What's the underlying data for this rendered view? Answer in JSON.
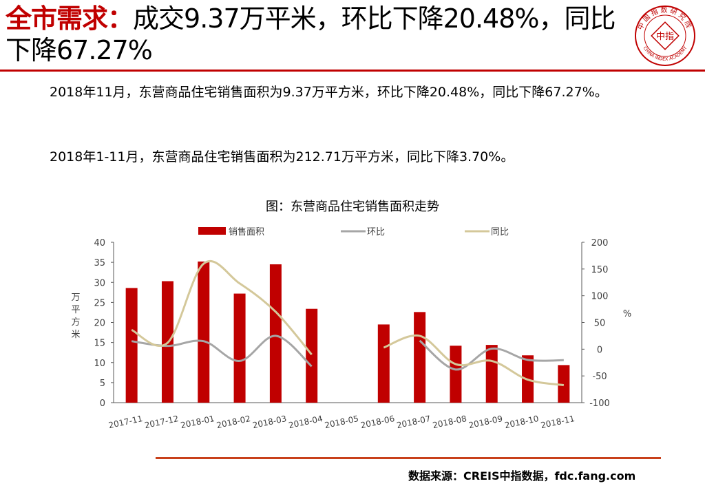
{
  "header": {
    "title_highlight": "全市需求：",
    "title_rest": "成交9.37万平米，环比下降20.48%，同比下降67.27%"
  },
  "logo": {
    "top_text": "中国指数研究院",
    "center_text": "中指",
    "bottom_text": "CHINA INDEX ACADEMY",
    "color": "#c00000"
  },
  "body": {
    "para1": "2018年11月，东营商品住宅销售面积为9.37万平方米，环比下降20.48%，同比下降67.27%。",
    "para2": "2018年1-11月，东营商品住宅销售面积为212.71万平方米，同比下降3.70%。"
  },
  "chart_title": "图：东营商品住宅销售面积走势",
  "chart_data": {
    "type": "bar",
    "categories": [
      "2017-11",
      "2017-12",
      "2018-01",
      "2018-02",
      "2018-03",
      "2018-04",
      "2018-05",
      "2018-06",
      "2018-07",
      "2018-08",
      "2018-09",
      "2018-10",
      "2018-11"
    ],
    "series": [
      {
        "name": "销售面积",
        "kind": "bar",
        "axis": "left",
        "color": "#c00000",
        "values": [
          28.6,
          30.3,
          35.2,
          27.2,
          34.5,
          23.4,
          null,
          19.5,
          22.6,
          14.2,
          14.4,
          11.8,
          9.37
        ]
      },
      {
        "name": "环比",
        "kind": "line",
        "axis": "right",
        "color": "#a6a6a6",
        "values": [
          15,
          6,
          15,
          -22,
          25,
          -32,
          null,
          null,
          16,
          -38,
          1,
          -20,
          -20.48
        ]
      },
      {
        "name": "同比",
        "kind": "line",
        "axis": "right",
        "color": "#d4c89a",
        "values": [
          36,
          12,
          160,
          123,
          70,
          -10,
          null,
          3,
          25,
          -28,
          -22,
          -57,
          -67.27
        ]
      }
    ],
    "ylabel": "万平方米",
    "y2label": "%",
    "ylim": [
      0,
      40
    ],
    "y2lim": [
      -100,
      200
    ],
    "yticks": [
      "0",
      "5",
      "10",
      "15",
      "20",
      "25",
      "30",
      "35",
      "40"
    ],
    "y2ticks": [
      "-100",
      "-50",
      "0",
      "50",
      "100",
      "150",
      "200"
    ],
    "legend_position": "top",
    "grid": false
  },
  "footer": {
    "source": "数据来源：CREIS中指数据，fdc.fang.com"
  }
}
